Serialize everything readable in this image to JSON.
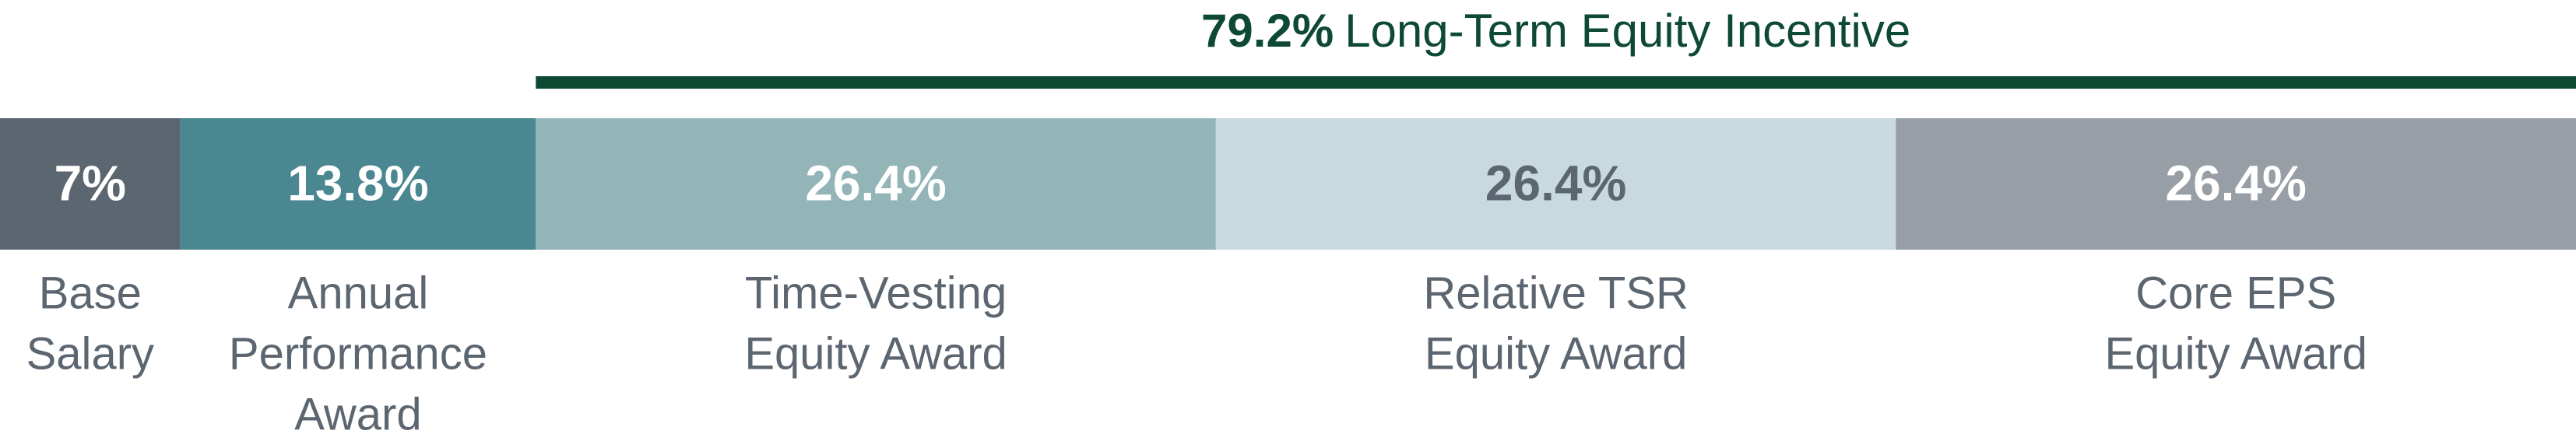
{
  "chart_data": {
    "type": "stacked-bar",
    "categories": [
      [
        "Base",
        "Salary"
      ],
      [
        "Annual",
        "Performance",
        "Award"
      ],
      [
        "Time-Vesting",
        "Equity Award"
      ],
      [
        "Relative TSR",
        "Equity Award"
      ],
      [
        "Core EPS",
        "Equity Award"
      ]
    ],
    "values": [
      7,
      13.8,
      26.4,
      26.4,
      26.4
    ],
    "value_labels": [
      "7%",
      "13.8%",
      "26.4%",
      "26.4%",
      "26.4%"
    ],
    "colors": [
      "#5c6670",
      "#4a8790",
      "#94b5b8",
      "#c8dadd",
      "#989ea5"
    ],
    "label_colors": [
      "#ffffff",
      "#ffffff",
      "#ffffff",
      "#5c6670",
      "#ffffff"
    ],
    "xlim": [
      0,
      100
    ],
    "annotation": {
      "value": 79.2,
      "label": "79.2%",
      "text": "Long-Term Equity Incentive",
      "color": "#0e4a33"
    }
  }
}
